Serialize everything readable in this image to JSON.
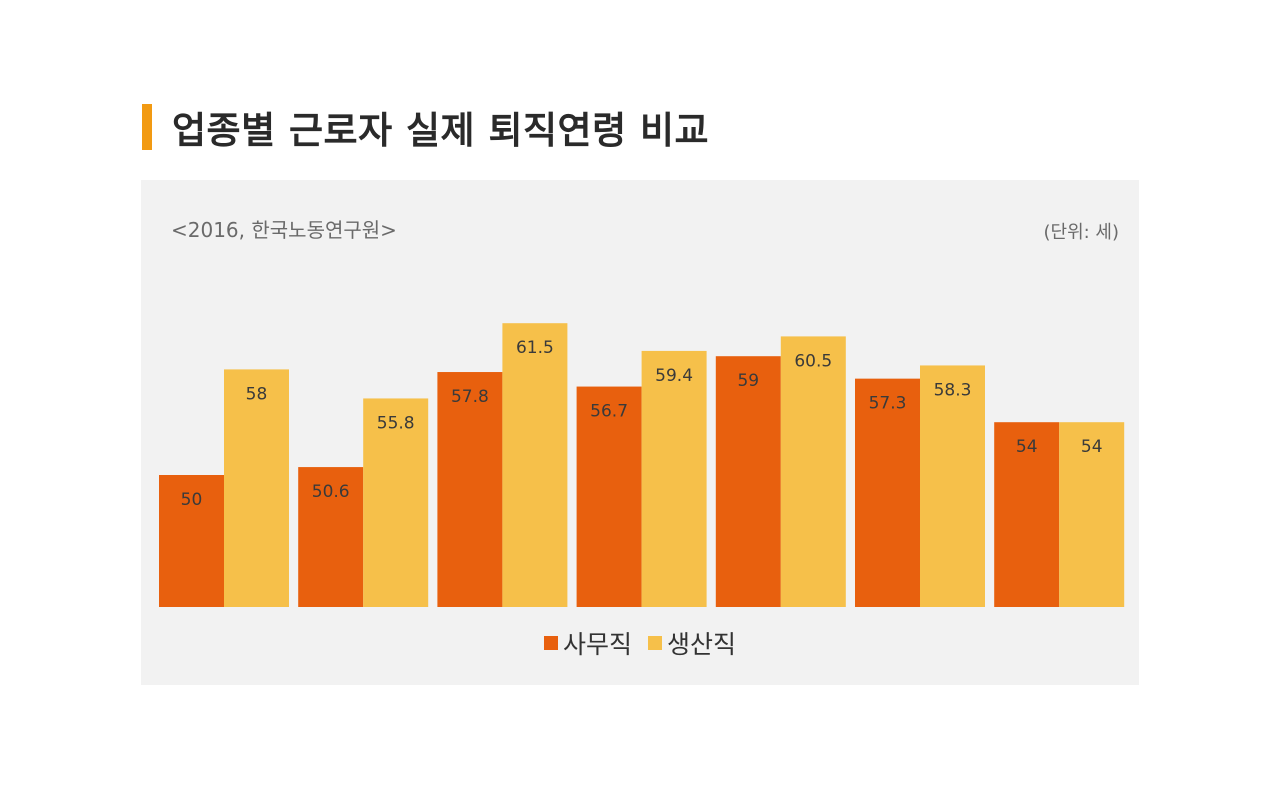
{
  "title": "업종별 근로자 실제 퇴직연령 비교",
  "source": "<2016, 한국노동연구원>",
  "unit": "(단위: 세)",
  "colors": {
    "accent": "#f29a12",
    "series1": "#e8600e",
    "series2": "#f6c04a"
  },
  "chart_data": {
    "type": "bar",
    "categories": [
      "",
      "",
      "",
      "",
      "",
      "",
      ""
    ],
    "series": [
      {
        "name": "사무직",
        "values": [
          50,
          50.6,
          57.8,
          56.7,
          59,
          57.3,
          54
        ]
      },
      {
        "name": "생산직",
        "values": [
          58,
          55.8,
          61.5,
          59.4,
          60.5,
          58.3,
          54
        ]
      }
    ],
    "ylim": [
      40,
      62.5
    ],
    "grid": false,
    "legend": "bottom"
  }
}
